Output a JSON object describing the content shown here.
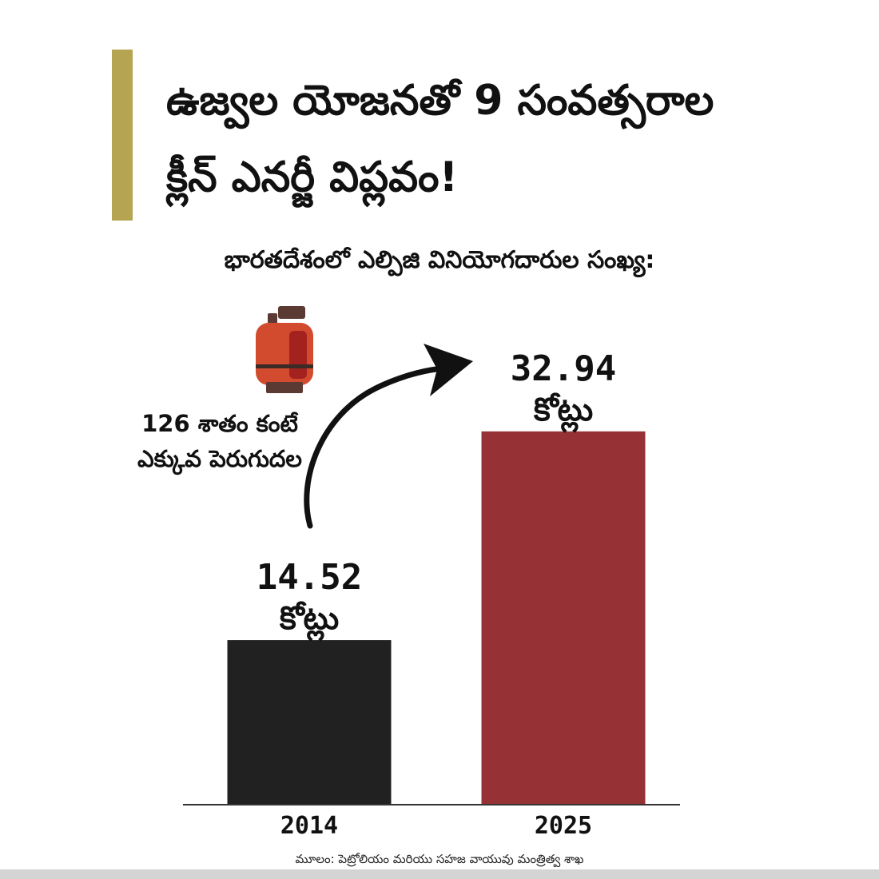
{
  "header": {
    "title_line1": "ఉజ్వల యోజనతో 9 సంవత్సరాల",
    "title_line2": "క్లీన్ ఎనర్జీ విప్లవం!",
    "accent_color": "#b5a553"
  },
  "annotation": {
    "line1": "126 శాతం కంటే",
    "line2": "ఎక్కువ పెరుగుదల",
    "icon": "gas-cylinder-icon"
  },
  "source": "మూలం: పెట్రోలియం మరియు సహజ వాయువు మంత్రిత్వ శాఖ",
  "chart_data": {
    "type": "bar",
    "title": "భారతదేశంలో ఎల్పిజి వినియోగదారుల సంఖ్య:",
    "categories": [
      "2014",
      "2025"
    ],
    "values": [
      14.52,
      32.94
    ],
    "value_labels": [
      "14.52",
      "32.94"
    ],
    "unit_label": "కోట్లు",
    "bar_colors": [
      "#212121",
      "#963236"
    ],
    "ylim": [
      0,
      44
    ],
    "grid": false,
    "legend": "none"
  }
}
